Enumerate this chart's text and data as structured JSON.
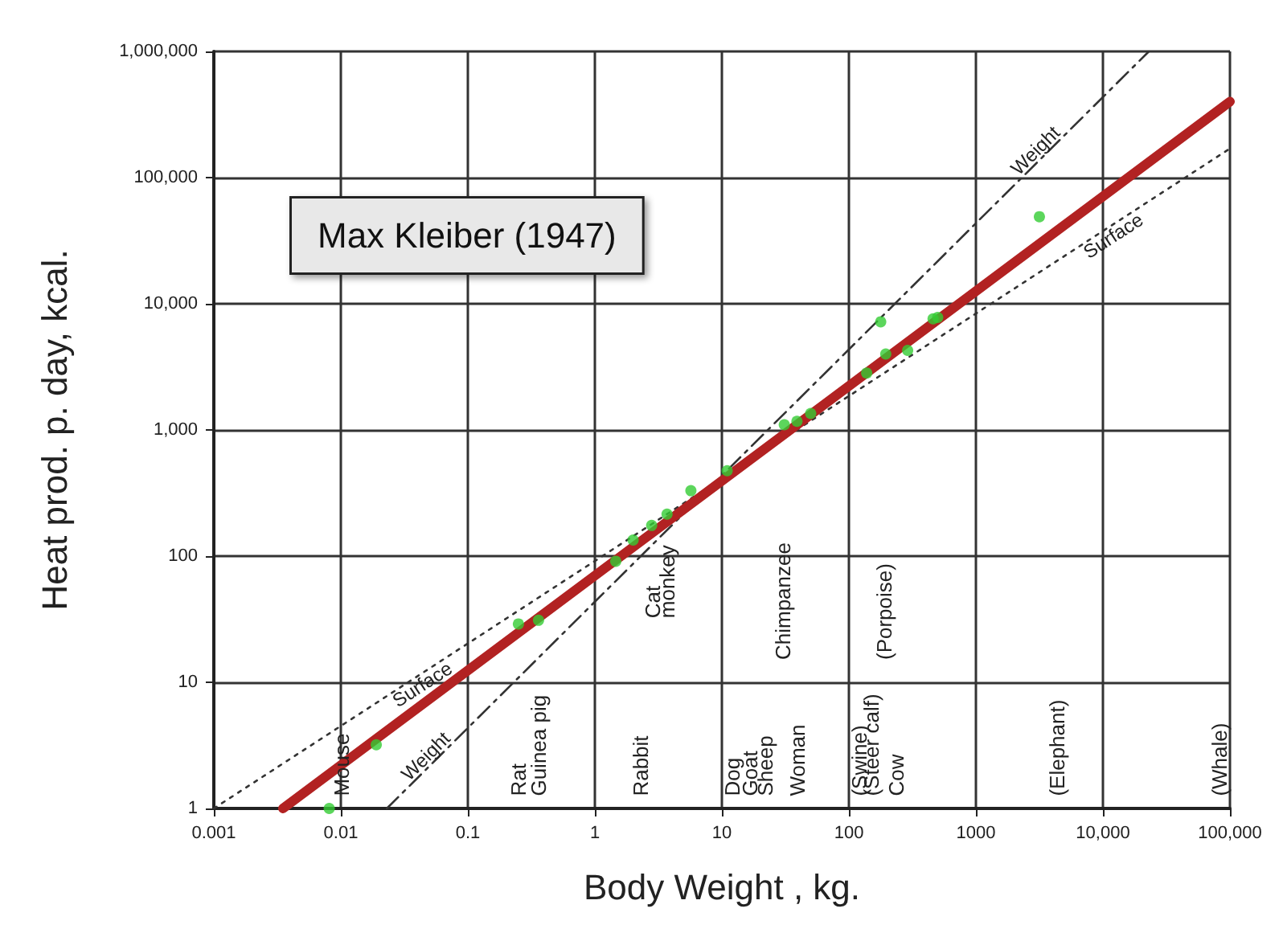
{
  "chart_data": {
    "type": "scatter",
    "xlabel": "Body Weight , kg.",
    "ylabel": "Heat prod. p. day, kcal.",
    "log": "xy",
    "grid": true,
    "xlim": [
      0.001,
      100000
    ],
    "ylim": [
      1,
      1000000
    ],
    "xticks": [
      0.001,
      0.01,
      0.1,
      1,
      10,
      100,
      1000,
      {
        "value": 10000,
        "label": "10,000"
      },
      {
        "value": 100000,
        "label": "100,000"
      }
    ],
    "yticks": [
      1,
      10,
      100,
      {
        "value": 1000,
        "label": "1,000"
      },
      {
        "value": 10000,
        "label": "10,000"
      },
      {
        "value": 100000,
        "label": "100,000"
      },
      {
        "value": 1000000,
        "label": "1,000,000"
      }
    ],
    "series": [
      {
        "marker": "circle",
        "color": "#33cc33",
        "x": [
          0.0081,
          0.019,
          0.25,
          0.36,
          1.46,
          2.0,
          2.8,
          3.7,
          5.7,
          11,
          31,
          39,
          50,
          138,
          178,
          195,
          290,
          460,
          500,
          3160
        ],
        "values": [
          1,
          3.2,
          29,
          31,
          91,
          134,
          175,
          215,
          330,
          475,
          1100,
          1170,
          1350,
          2820,
          7200,
          4000,
          4270,
          7600,
          7800,
          49000
        ]
      },
      {
        "type": "line",
        "marker": "none",
        "color": "#b22222",
        "line_style": "solid",
        "x": [
          0.0035,
          100000
        ],
        "values": [
          1,
          400000
        ]
      },
      {
        "type": "line",
        "marker": "none",
        "name": "Weight",
        "color": "#333333",
        "line_style": "dashed",
        "x": [
          0.023,
          23000
        ],
        "values": [
          1,
          1000000
        ]
      },
      {
        "type": "line",
        "marker": "none",
        "name": "Surface",
        "color": "#333333",
        "line_style": "dotted",
        "x": [
          0.001,
          100000
        ],
        "values": [
          1,
          170000
        ]
      }
    ],
    "annotations": [
      "Max Kleiber (1947)",
      "Mouse",
      "Rat",
      "Guinea pig",
      "Rabbit",
      "Cat",
      "monkey",
      "Dog",
      "Goat",
      "Sheep",
      "Chimpanzee",
      "Woman",
      "(Swine)",
      "(Steer calf)",
      "(Porpoise)",
      "Cow",
      "(Elephant)",
      "(Whale)"
    ]
  }
}
